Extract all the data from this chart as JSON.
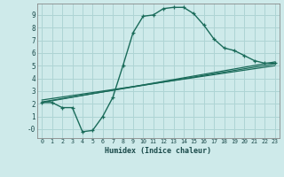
{
  "xlabel": "Humidex (Indice chaleur)",
  "background_color": "#ceeaea",
  "grid_color": "#aed4d4",
  "line_color": "#1a6b5a",
  "xlim": [
    -0.5,
    23.5
  ],
  "ylim": [
    -0.7,
    9.9
  ],
  "xticks": [
    0,
    1,
    2,
    3,
    4,
    5,
    6,
    7,
    8,
    9,
    10,
    11,
    12,
    13,
    14,
    15,
    16,
    17,
    18,
    19,
    20,
    21,
    22,
    23
  ],
  "yticks": [
    0,
    1,
    2,
    3,
    4,
    5,
    6,
    7,
    8,
    9
  ],
  "ytick_labels": [
    "-0",
    "1",
    "2",
    "3",
    "4",
    "5",
    "6",
    "7",
    "8",
    "9"
  ],
  "line1_x": [
    0,
    1,
    2,
    3,
    4,
    5,
    6,
    7,
    8,
    9,
    10,
    11,
    12,
    13,
    14,
    15,
    16,
    17,
    18,
    19,
    20,
    21,
    22,
    23
  ],
  "line1_y": [
    2.1,
    2.1,
    1.7,
    1.7,
    -0.2,
    -0.1,
    1.0,
    2.5,
    5.0,
    7.6,
    8.9,
    9.0,
    9.5,
    9.6,
    9.6,
    9.1,
    8.2,
    7.1,
    6.4,
    6.2,
    5.8,
    5.4,
    5.2,
    5.2
  ],
  "line2_x": [
    0,
    23
  ],
  "line2_y": [
    2.1,
    5.3
  ],
  "line3_x": [
    0,
    23
  ],
  "line3_y": [
    2.3,
    5.0
  ],
  "line4_x": [
    0,
    23
  ],
  "line4_y": [
    2.15,
    5.15
  ]
}
